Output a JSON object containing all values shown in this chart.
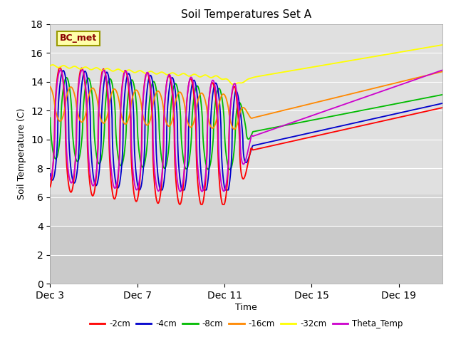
{
  "title": "Soil Temperatures Set A",
  "xlabel": "Time",
  "ylabel": "Soil Temperature (C)",
  "ylim": [
    0,
    18
  ],
  "yticks": [
    0,
    2,
    4,
    6,
    8,
    10,
    12,
    14,
    16,
    18
  ],
  "xtick_labels": [
    "Dec 3",
    "Dec 7",
    "Dec 11",
    "Dec 15",
    "Dec 19"
  ],
  "xtick_positions": [
    3,
    7,
    11,
    15,
    19
  ],
  "xlim": [
    3,
    21
  ],
  "colors": {
    "2cm": "#ff0000",
    "4cm": "#0000cc",
    "8cm": "#00bb00",
    "16cm": "#ff8800",
    "32cm": "#ffff00",
    "theta": "#cc00cc"
  },
  "legend_labels": [
    "-2cm",
    "-4cm",
    "-8cm",
    "-16cm",
    "-32cm",
    "Theta_Temp"
  ],
  "annotation_text": "BC_met",
  "bg_color_plot": "#d8d8d8",
  "bg_color_lower": "#c8c8c8"
}
